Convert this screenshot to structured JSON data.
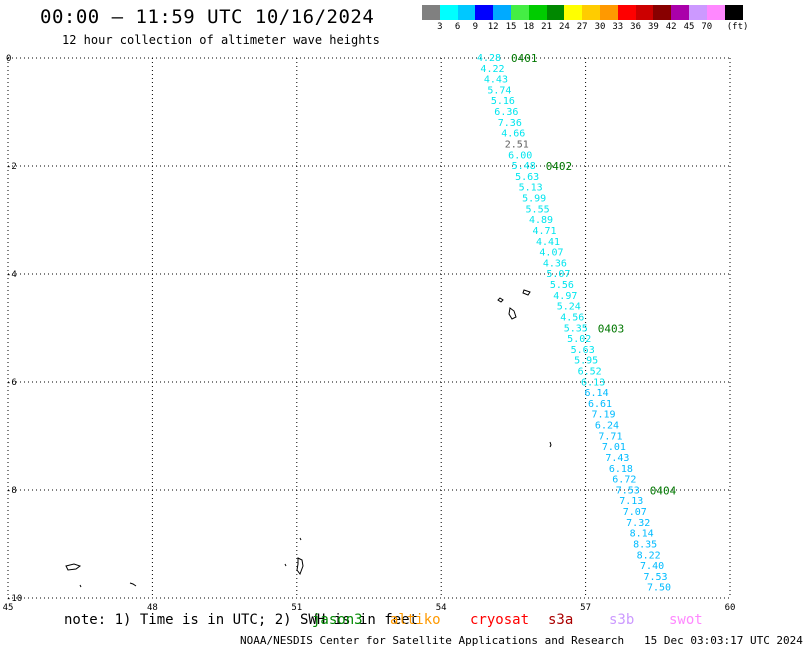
{
  "header": {
    "title": "00:00 – 11:59 UTC 10/16/2024",
    "subtitle": "12 hour collection of altimeter wave heights"
  },
  "legend": {
    "unit": "(ft)",
    "items": [
      {
        "color": "#808080",
        "label": ""
      },
      {
        "color": "#00ffff",
        "label": "3"
      },
      {
        "color": "#00c8ff",
        "label": "6"
      },
      {
        "color": "#0000ff",
        "label": "9"
      },
      {
        "color": "#00aaff",
        "label": "12"
      },
      {
        "color": "#44ee44",
        "label": "15"
      },
      {
        "color": "#00cc00",
        "label": "18"
      },
      {
        "color": "#008800",
        "label": "21"
      },
      {
        "color": "#ffff00",
        "label": "24"
      },
      {
        "color": "#ffcc00",
        "label": "27"
      },
      {
        "color": "#ff9900",
        "label": "30"
      },
      {
        "color": "#ff0000",
        "label": "33"
      },
      {
        "color": "#cc0000",
        "label": "36"
      },
      {
        "color": "#880000",
        "label": "39"
      },
      {
        "color": "#aa00aa",
        "label": "42"
      },
      {
        "color": "#cc99ff",
        "label": "45"
      },
      {
        "color": "#ff88ff",
        "label": "70"
      },
      {
        "color": "#000000",
        "label": ""
      }
    ]
  },
  "map": {
    "x_ticks": [
      "45",
      "48",
      "51",
      "54",
      "57",
      "60"
    ],
    "y_ticks": [
      "0",
      "-2",
      "-4",
      "-6",
      "-8",
      "-10"
    ],
    "lon_range": [
      45,
      60
    ],
    "lat_range": [
      -10,
      0
    ],
    "grid": true,
    "colors": {
      "cyan_track": "#00e5ee",
      "blue_track": "#00bbff",
      "gray_value": "#606060",
      "time_label": "#007700",
      "grid": "#000000"
    }
  },
  "track": {
    "time_labels": [
      {
        "text": "0401",
        "index": 0
      },
      {
        "text": "0402",
        "index": 10
      },
      {
        "text": "0403",
        "index": 25
      },
      {
        "text": "0404",
        "index": 40
      }
    ],
    "values": [
      {
        "v": "4.28",
        "c": "cyan"
      },
      {
        "v": "4.22",
        "c": "cyan"
      },
      {
        "v": "4.43",
        "c": "cyan"
      },
      {
        "v": "5.74",
        "c": "cyan"
      },
      {
        "v": "5.16",
        "c": "cyan"
      },
      {
        "v": "6.36",
        "c": "cyan"
      },
      {
        "v": "7.36",
        "c": "cyan"
      },
      {
        "v": "4.66",
        "c": "cyan"
      },
      {
        "v": "2.51",
        "c": "gray"
      },
      {
        "v": "6.00",
        "c": "cyan"
      },
      {
        "v": "5.48",
        "c": "cyan"
      },
      {
        "v": "5.63",
        "c": "cyan"
      },
      {
        "v": "5.13",
        "c": "cyan"
      },
      {
        "v": "5.99",
        "c": "cyan"
      },
      {
        "v": "5.55",
        "c": "cyan"
      },
      {
        "v": "4.89",
        "c": "cyan"
      },
      {
        "v": "4.71",
        "c": "cyan"
      },
      {
        "v": "4.41",
        "c": "cyan"
      },
      {
        "v": "4.07",
        "c": "cyan"
      },
      {
        "v": "4.36",
        "c": "cyan"
      },
      {
        "v": "5.07",
        "c": "cyan"
      },
      {
        "v": "5.56",
        "c": "cyan"
      },
      {
        "v": "4.97",
        "c": "cyan"
      },
      {
        "v": "5.24",
        "c": "cyan"
      },
      {
        "v": "4.56",
        "c": "cyan"
      },
      {
        "v": "5.35",
        "c": "cyan"
      },
      {
        "v": "5.02",
        "c": "cyan"
      },
      {
        "v": "5.63",
        "c": "cyan"
      },
      {
        "v": "5.95",
        "c": "cyan"
      },
      {
        "v": "6.52",
        "c": "cyan"
      },
      {
        "v": "6.13",
        "c": "cyan"
      },
      {
        "v": "6.14",
        "c": "blue"
      },
      {
        "v": "6.61",
        "c": "blue"
      },
      {
        "v": "7.19",
        "c": "blue"
      },
      {
        "v": "6.24",
        "c": "blue"
      },
      {
        "v": "7.71",
        "c": "blue"
      },
      {
        "v": "7.01",
        "c": "blue"
      },
      {
        "v": "7.43",
        "c": "blue"
      },
      {
        "v": "6.18",
        "c": "blue"
      },
      {
        "v": "6.72",
        "c": "blue"
      },
      {
        "v": "7.53",
        "c": "blue"
      },
      {
        "v": "7.13",
        "c": "blue"
      },
      {
        "v": "7.07",
        "c": "blue"
      },
      {
        "v": "7.32",
        "c": "blue"
      },
      {
        "v": "8.14",
        "c": "blue"
      },
      {
        "v": "8.35",
        "c": "blue"
      },
      {
        "v": "8.22",
        "c": "blue"
      },
      {
        "v": "7.40",
        "c": "blue"
      },
      {
        "v": "7.53",
        "c": "blue"
      },
      {
        "v": "7.50",
        "c": "blue"
      }
    ]
  },
  "footer": {
    "note": "note: 1) Time is in UTC; 2) SWH is in feet",
    "satellites": [
      {
        "name": "jason3",
        "color": "#008800"
      },
      {
        "name": "altiko",
        "color": "#ff9900"
      },
      {
        "name": "cryosat",
        "color": "#ff0000"
      },
      {
        "name": "s3a",
        "color": "#aa0000"
      },
      {
        "name": "s3b",
        "color": "#cc99ff"
      },
      {
        "name": "swot",
        "color": "#ff88ff"
      }
    ],
    "credit": "NOAA/NESDIS Center for Satellite Applications and Research",
    "timestamp": "15 Dec 03:03:17 UTC 2024"
  }
}
